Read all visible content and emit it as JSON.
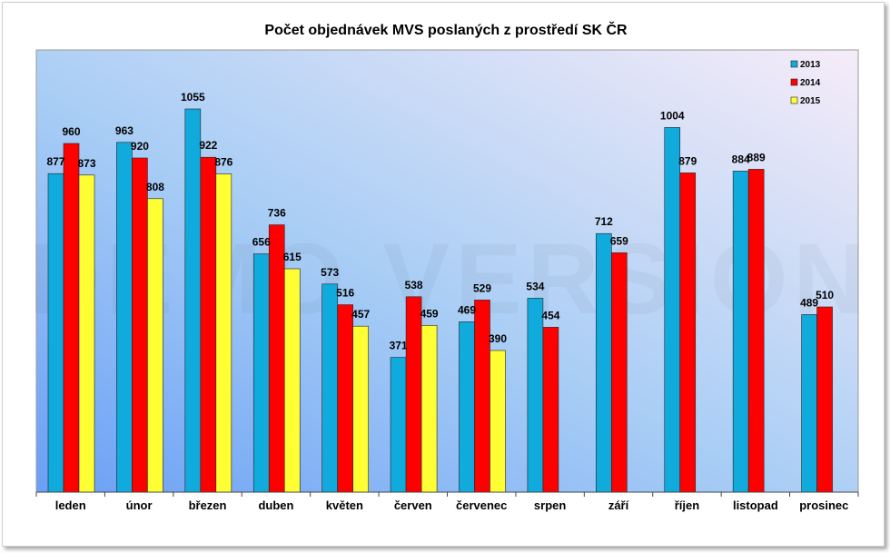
{
  "chart_data": {
    "type": "bar",
    "title": "Počet objednávek MVS poslaných z prostředí SK ČR",
    "categories": [
      "leden",
      "únor",
      "březen",
      "duben",
      "květen",
      "červen",
      "červenec",
      "srpen",
      "září",
      "říjen",
      "listopad",
      "prosinec"
    ],
    "series": [
      {
        "name": "2013",
        "color": "#11aadd",
        "values": [
          877,
          963,
          1055,
          656,
          573,
          371,
          469,
          534,
          712,
          1004,
          884,
          489
        ]
      },
      {
        "name": "2014",
        "color": "#ff0000",
        "values": [
          960,
          920,
          922,
          736,
          516,
          538,
          529,
          454,
          659,
          879,
          889,
          510
        ]
      },
      {
        "name": "2015",
        "color": "#ffff33",
        "values": [
          873,
          808,
          876,
          615,
          457,
          459,
          390,
          null,
          null,
          null,
          null,
          null
        ]
      }
    ],
    "ylim": [
      0,
      1250
    ],
    "legend_position": "top-right",
    "grid": false,
    "watermark": "DEMO VERSION"
  }
}
